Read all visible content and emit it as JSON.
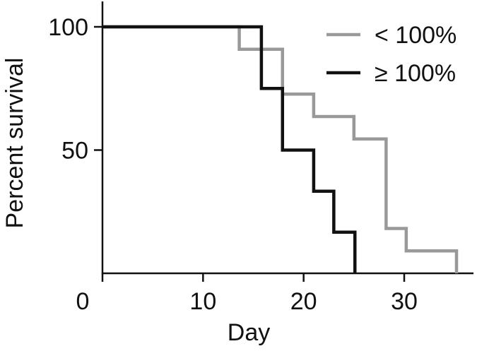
{
  "chart_data": {
    "type": "line",
    "step": true,
    "title": "",
    "xlabel": "Day",
    "ylabel": "Percent survival",
    "xlim": [
      0,
      36
    ],
    "ylim": [
      0,
      100
    ],
    "xticks": [
      0,
      10,
      20,
      30
    ],
    "yticks": [
      0,
      50,
      100
    ],
    "x_origin_label": "0",
    "y_origin_label": "0",
    "grid": false,
    "legend": "top-right",
    "series": [
      {
        "name": "< 100%",
        "color": "#999999",
        "x": [
          0,
          13.6,
          17.9,
          21,
          25,
          28.2,
          30.2,
          35.2,
          35.2
        ],
        "y": [
          100,
          90.9,
          72.7,
          63.6,
          54.5,
          18.2,
          9.1,
          9.1,
          0
        ]
      },
      {
        "name": "≥ 100%",
        "color": "#111111",
        "x": [
          0,
          15.8,
          17.9,
          21,
          23,
          25.1,
          25.1
        ],
        "y": [
          100,
          75,
          50,
          33.3,
          16.7,
          0,
          0
        ]
      }
    ]
  }
}
